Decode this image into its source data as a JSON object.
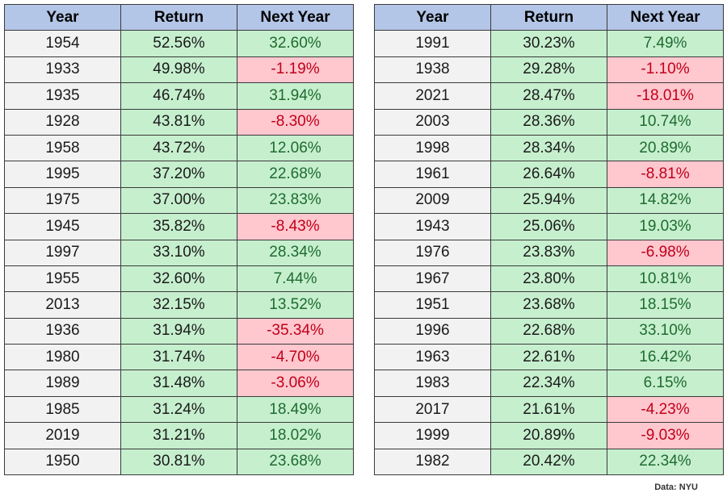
{
  "headers": [
    "Year",
    "Return",
    "Next Year"
  ],
  "left_rows": [
    {
      "year": "1954",
      "ret": "52.56%",
      "next": "32.60%",
      "sign": "pos"
    },
    {
      "year": "1933",
      "ret": "49.98%",
      "next": "-1.19%",
      "sign": "neg"
    },
    {
      "year": "1935",
      "ret": "46.74%",
      "next": "31.94%",
      "sign": "pos"
    },
    {
      "year": "1928",
      "ret": "43.81%",
      "next": "-8.30%",
      "sign": "neg"
    },
    {
      "year": "1958",
      "ret": "43.72%",
      "next": "12.06%",
      "sign": "pos"
    },
    {
      "year": "1995",
      "ret": "37.20%",
      "next": "22.68%",
      "sign": "pos"
    },
    {
      "year": "1975",
      "ret": "37.00%",
      "next": "23.83%",
      "sign": "pos"
    },
    {
      "year": "1945",
      "ret": "35.82%",
      "next": "-8.43%",
      "sign": "neg"
    },
    {
      "year": "1997",
      "ret": "33.10%",
      "next": "28.34%",
      "sign": "pos"
    },
    {
      "year": "1955",
      "ret": "32.60%",
      "next": "7.44%",
      "sign": "pos"
    },
    {
      "year": "2013",
      "ret": "32.15%",
      "next": "13.52%",
      "sign": "pos"
    },
    {
      "year": "1936",
      "ret": "31.94%",
      "next": "-35.34%",
      "sign": "neg"
    },
    {
      "year": "1980",
      "ret": "31.74%",
      "next": "-4.70%",
      "sign": "neg"
    },
    {
      "year": "1989",
      "ret": "31.48%",
      "next": "-3.06%",
      "sign": "neg"
    },
    {
      "year": "1985",
      "ret": "31.24%",
      "next": "18.49%",
      "sign": "pos"
    },
    {
      "year": "2019",
      "ret": "31.21%",
      "next": "18.02%",
      "sign": "pos"
    },
    {
      "year": "1950",
      "ret": "30.81%",
      "next": "23.68%",
      "sign": "pos"
    }
  ],
  "right_rows": [
    {
      "year": "1991",
      "ret": "30.23%",
      "next": "7.49%",
      "sign": "pos"
    },
    {
      "year": "1938",
      "ret": "29.28%",
      "next": "-1.10%",
      "sign": "neg"
    },
    {
      "year": "2021",
      "ret": "28.47%",
      "next": "-18.01%",
      "sign": "neg"
    },
    {
      "year": "2003",
      "ret": "28.36%",
      "next": "10.74%",
      "sign": "pos"
    },
    {
      "year": "1998",
      "ret": "28.34%",
      "next": "20.89%",
      "sign": "pos"
    },
    {
      "year": "1961",
      "ret": "26.64%",
      "next": "-8.81%",
      "sign": "neg"
    },
    {
      "year": "2009",
      "ret": "25.94%",
      "next": "14.82%",
      "sign": "pos"
    },
    {
      "year": "1943",
      "ret": "25.06%",
      "next": "19.03%",
      "sign": "pos"
    },
    {
      "year": "1976",
      "ret": "23.83%",
      "next": "-6.98%",
      "sign": "neg"
    },
    {
      "year": "1967",
      "ret": "23.80%",
      "next": "10.81%",
      "sign": "pos"
    },
    {
      "year": "1951",
      "ret": "23.68%",
      "next": "18.15%",
      "sign": "pos"
    },
    {
      "year": "1996",
      "ret": "22.68%",
      "next": "33.10%",
      "sign": "pos"
    },
    {
      "year": "1963",
      "ret": "22.61%",
      "next": "16.42%",
      "sign": "pos"
    },
    {
      "year": "1983",
      "ret": "22.34%",
      "next": "6.15%",
      "sign": "pos"
    },
    {
      "year": "2017",
      "ret": "21.61%",
      "next": "-4.23%",
      "sign": "neg"
    },
    {
      "year": "1999",
      "ret": "20.89%",
      "next": "-9.03%",
      "sign": "neg"
    },
    {
      "year": "1982",
      "ret": "20.42%",
      "next": "22.34%",
      "sign": "pos"
    }
  ],
  "source": "Data: NYU",
  "colors": {
    "header_bg": "#b4c6e7",
    "year_bg": "#f2f2f2",
    "positive_bg": "#c6efce",
    "positive_text": "#1e6b2e",
    "negative_bg": "#ffc7ce",
    "negative_text": "#c0001a"
  }
}
